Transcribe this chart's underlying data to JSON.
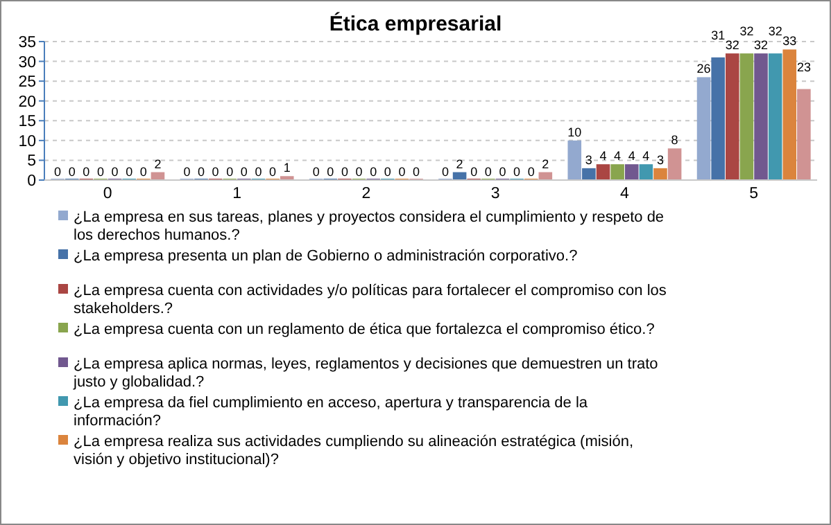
{
  "chart_data": {
    "type": "bar",
    "title": "Ética empresarial",
    "categories": [
      "0",
      "1",
      "2",
      "3",
      "4",
      "5"
    ],
    "series": [
      {
        "name": "¿La empresa en sus tareas, planes y proyectos considera el cumplimiento y respeto de los derechos humanos.?",
        "color": "#93a9cf",
        "values": [
          0,
          0,
          0,
          0,
          10,
          26
        ]
      },
      {
        "name": "¿La empresa presenta un plan de Gobierno o administración corporativo.?",
        "color": "#4672a8",
        "values": [
          0,
          0,
          0,
          2,
          3,
          31
        ]
      },
      {
        "name": "¿La empresa cuenta con actividades y/o políticas para fortalecer el compromiso con los stakeholders.?",
        "color": "#aa4643",
        "values": [
          0,
          0,
          0,
          0,
          4,
          32
        ]
      },
      {
        "name": "¿La empresa cuenta con un reglamento de ética que fortalezca el compromiso ético.?",
        "color": "#89a54e",
        "values": [
          0,
          0,
          0,
          0,
          4,
          32
        ]
      },
      {
        "name": "¿La empresa aplica normas, leyes, reglamentos y decisiones que demuestren un trato justo y globalidad.?",
        "color": "#71588f",
        "values": [
          0,
          0,
          0,
          0,
          4,
          32
        ]
      },
      {
        "name": "¿La empresa da fiel cumplimiento en acceso, apertura y transparencia de la información?",
        "color": "#4198af",
        "values": [
          0,
          0,
          0,
          0,
          4,
          32
        ]
      },
      {
        "name": "¿La empresa realiza sus actividades cumpliendo su alineación estratégica (misión, visión y objetivo institucional)?",
        "color": "#db843d",
        "values": [
          0,
          0,
          0,
          0,
          3,
          33
        ]
      },
      {
        "color": "#d09393",
        "values": [
          2,
          1,
          0,
          2,
          8,
          23
        ]
      }
    ],
    "ylim": [
      0,
      35
    ],
    "yticks": [
      0,
      5,
      10,
      15,
      20,
      25,
      30,
      35
    ],
    "grid": "y",
    "data_labels": true,
    "legend": "bottom"
  }
}
